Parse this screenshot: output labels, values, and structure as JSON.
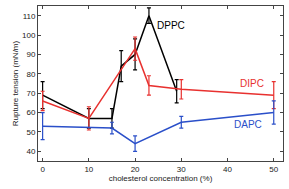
{
  "chart_data": {
    "type": "line",
    "x_label": "cholesterol concentration (%)",
    "y_label": "Rupture tension (mN/m)",
    "xlim": [
      -1,
      52
    ],
    "ylim": [
      35,
      115
    ],
    "xticks": [
      0,
      10,
      20,
      30,
      40,
      50
    ],
    "yticks": [
      40,
      50,
      60,
      70,
      80,
      90,
      100,
      110
    ],
    "grid": false,
    "series": [
      {
        "name": "DPPC",
        "color": "#000000",
        "x": [
          0,
          10,
          15,
          17,
          20,
          23,
          29
        ],
        "values": [
          69,
          57,
          57,
          84,
          90,
          110,
          71
        ],
        "errors": [
          7,
          5,
          5,
          8,
          8,
          4,
          6
        ]
      },
      {
        "name": "DIPC",
        "color": "#e8312f",
        "x": [
          0,
          10,
          20,
          23,
          30,
          50
        ],
        "values": [
          66,
          57,
          93,
          74,
          72,
          69
        ],
        "errors": [
          5,
          6,
          6,
          5,
          5,
          7
        ]
      },
      {
        "name": "DAPC",
        "color": "#2a4fc9",
        "x": [
          0,
          15,
          20,
          30,
          50
        ],
        "values": [
          53,
          52,
          44,
          55,
          60
        ],
        "errors": [
          7,
          3,
          4,
          3,
          6
        ]
      }
    ]
  }
}
